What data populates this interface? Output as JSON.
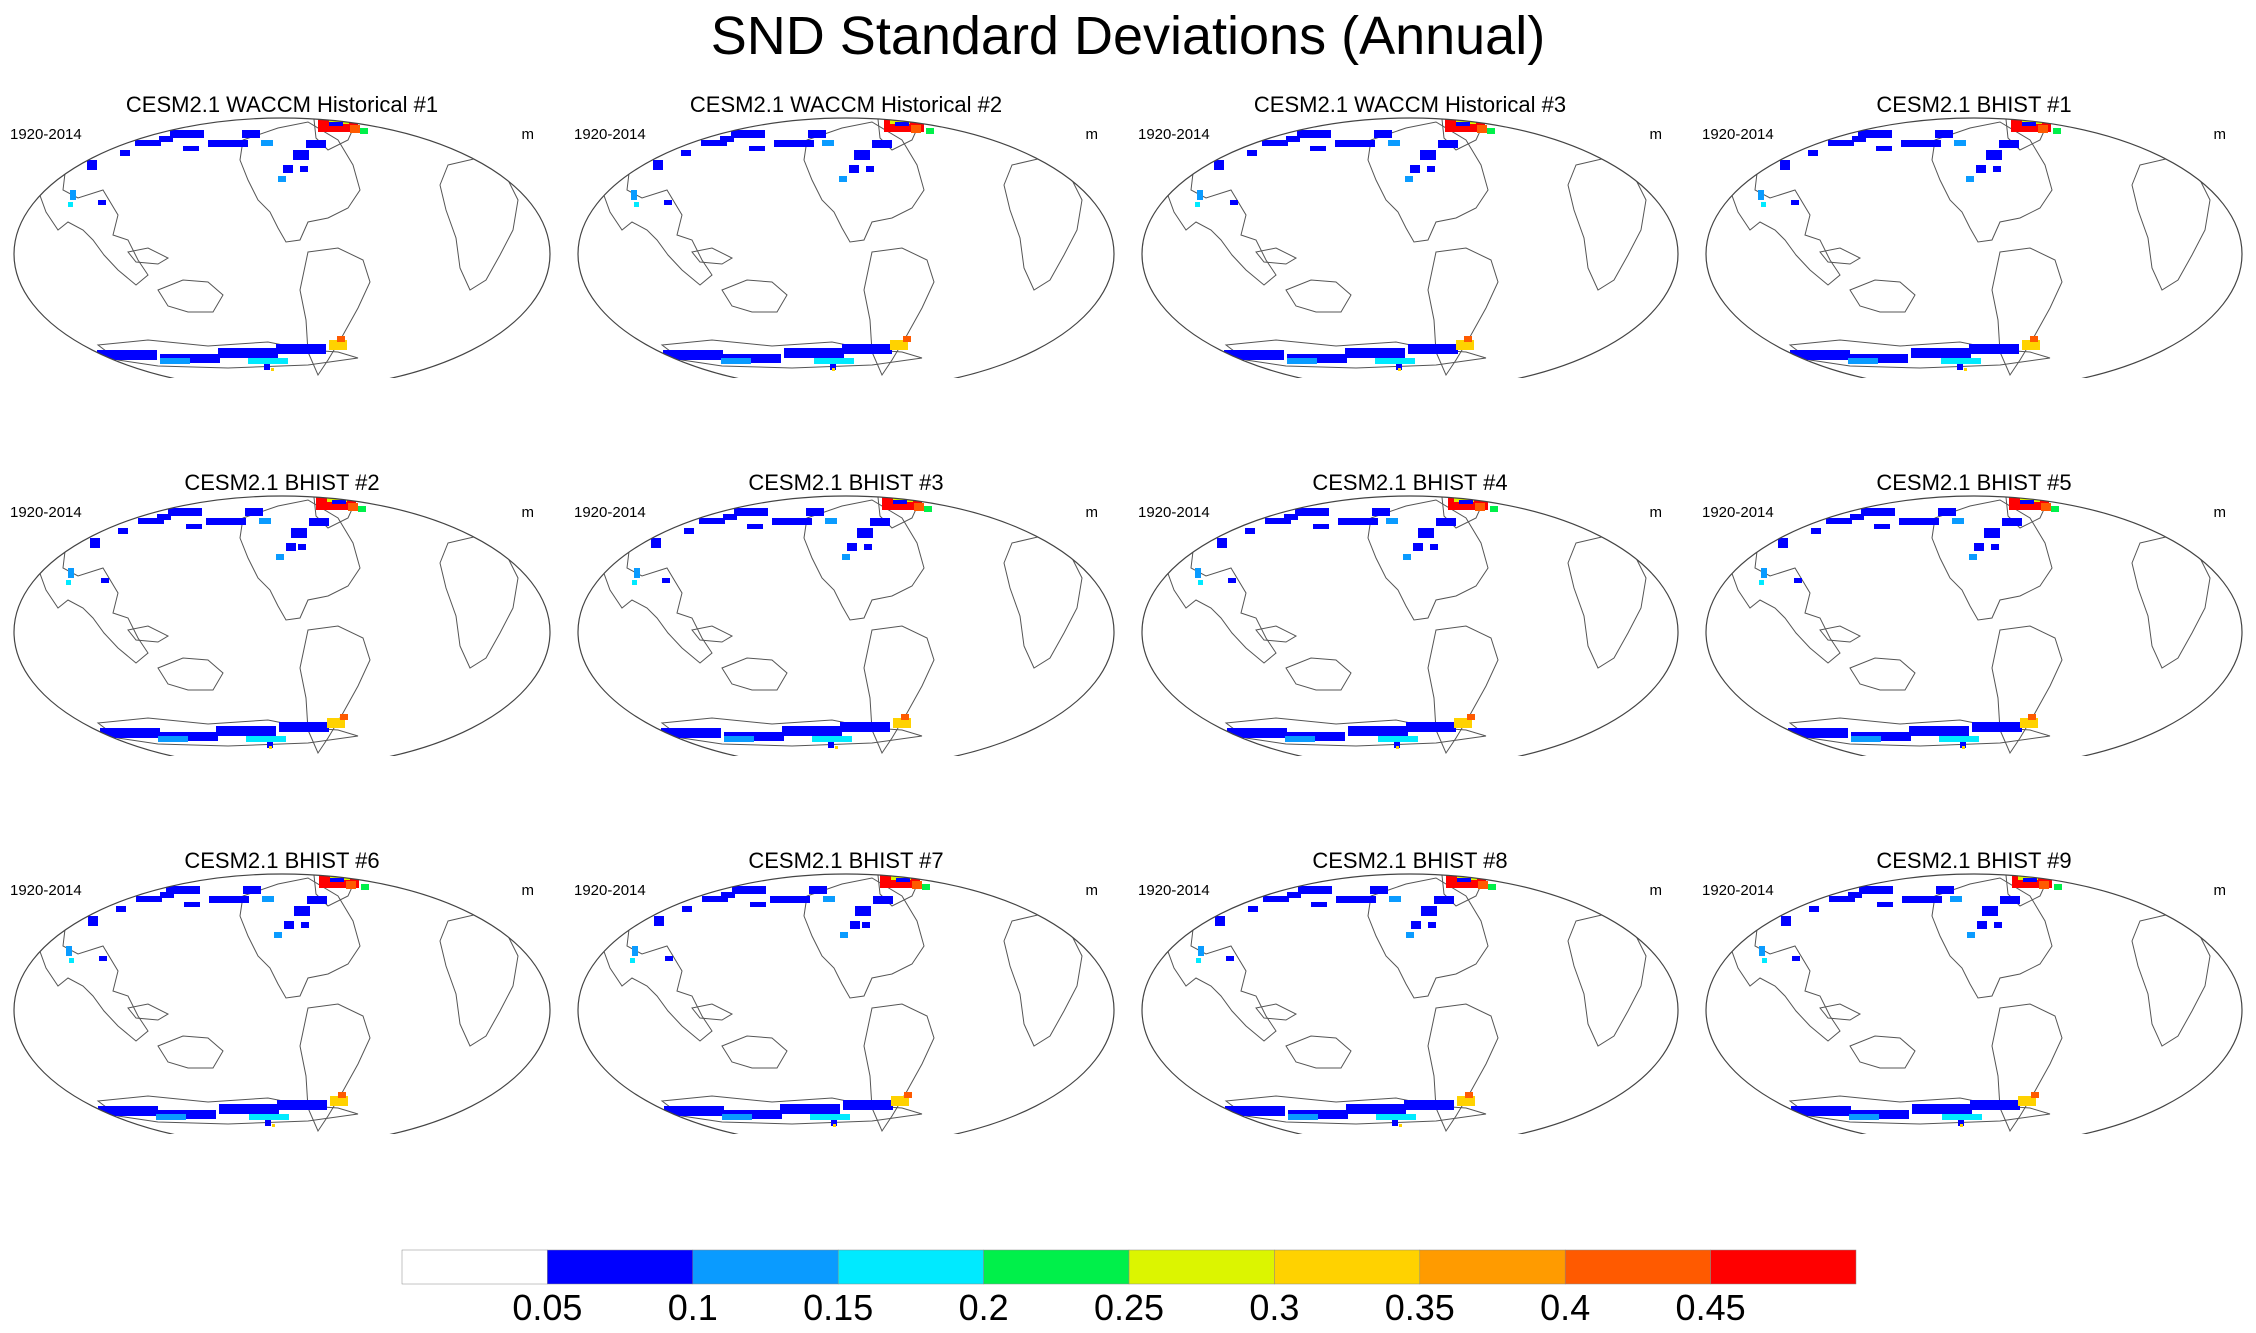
{
  "figure": {
    "title": "SND Standard Deviations (Annual)"
  },
  "chart_data": {
    "type": "map-panels",
    "variable": "SND",
    "statistic": "Standard Deviations",
    "season": "Annual",
    "panels": [
      {
        "title": "CESM2.1 WACCM Historical #1",
        "period": "1920-2014",
        "units": "m"
      },
      {
        "title": "CESM2.1 WACCM Historical #2",
        "period": "1920-2014",
        "units": "m"
      },
      {
        "title": "CESM2.1 WACCM Historical #3",
        "period": "1920-2014",
        "units": "m"
      },
      {
        "title": "CESM2.1 BHIST #1",
        "period": "1920-2014",
        "units": "m"
      },
      {
        "title": "CESM2.1 BHIST #2",
        "period": "1920-2014",
        "units": "m"
      },
      {
        "title": "CESM2.1 BHIST #3",
        "period": "1920-2014",
        "units": "m"
      },
      {
        "title": "CESM2.1 BHIST #4",
        "period": "1920-2014",
        "units": "m"
      },
      {
        "title": "CESM2.1 BHIST #5",
        "period": "1920-2014",
        "units": "m"
      },
      {
        "title": "CESM2.1 BHIST #6",
        "period": "1920-2014",
        "units": "m"
      },
      {
        "title": "CESM2.1 BHIST #7",
        "period": "1920-2014",
        "units": "m"
      },
      {
        "title": "CESM2.1 BHIST #8",
        "period": "1920-2014",
        "units": "m"
      },
      {
        "title": "CESM2.1 BHIST #9",
        "period": "1920-2014",
        "units": "m"
      }
    ],
    "colorbar": {
      "levels": [
        "0.05",
        "0.1",
        "0.15",
        "0.2",
        "0.25",
        "0.3",
        "0.35",
        "0.4",
        "0.45"
      ],
      "colors": [
        "#ffffff",
        "#0000ff",
        "#0a9bff",
        "#00eaff",
        "#00f04a",
        "#dcf500",
        "#ffd200",
        "#ff9b00",
        "#ff5a00",
        "#ff0000"
      ]
    }
  }
}
